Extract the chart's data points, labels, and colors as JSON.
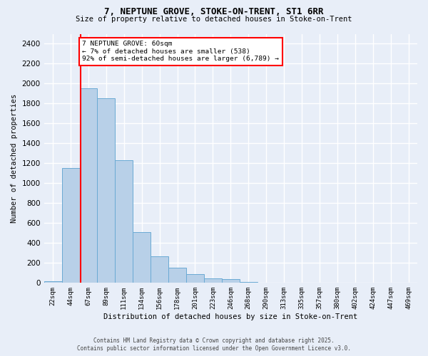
{
  "title1": "7, NEPTUNE GROVE, STOKE-ON-TRENT, ST1 6RR",
  "title2": "Size of property relative to detached houses in Stoke-on-Trent",
  "xlabel": "Distribution of detached houses by size in Stoke-on-Trent",
  "ylabel": "Number of detached properties",
  "categories": [
    "22sqm",
    "44sqm",
    "67sqm",
    "89sqm",
    "111sqm",
    "134sqm",
    "156sqm",
    "178sqm",
    "201sqm",
    "223sqm",
    "246sqm",
    "268sqm",
    "290sqm",
    "313sqm",
    "335sqm",
    "357sqm",
    "380sqm",
    "402sqm",
    "424sqm",
    "447sqm",
    "469sqm"
  ],
  "values": [
    20,
    1150,
    1950,
    1850,
    1230,
    510,
    270,
    155,
    90,
    45,
    35,
    10,
    5,
    3,
    2,
    1,
    1,
    0,
    0,
    0,
    0
  ],
  "bar_color": "#b8d0e8",
  "bar_edge_color": "#6aaad4",
  "red_line_x": 1.55,
  "annotation_title": "7 NEPTUNE GROVE: 60sqm",
  "annotation_line1": "← 7% of detached houses are smaller (538)",
  "annotation_line2": "92% of semi-detached houses are larger (6,789) →",
  "footer1": "Contains HM Land Registry data © Crown copyright and database right 2025.",
  "footer2": "Contains public sector information licensed under the Open Government Licence v3.0.",
  "ylim": [
    0,
    2500
  ],
  "yticks": [
    0,
    200,
    400,
    600,
    800,
    1000,
    1200,
    1400,
    1600,
    1800,
    2000,
    2200,
    2400
  ],
  "bg_color": "#e8eef8",
  "grid_color": "#ffffff"
}
